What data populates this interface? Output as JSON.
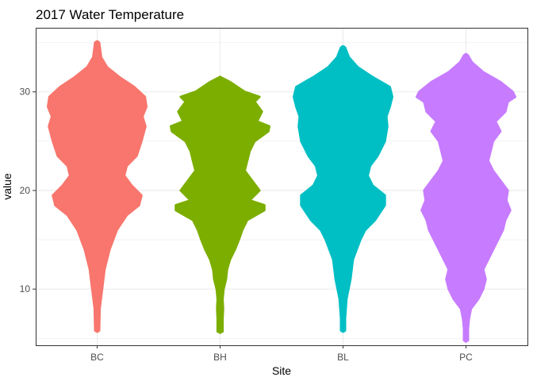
{
  "chart_data": {
    "type": "violin",
    "title": "2017 Water Temperature",
    "xlabel": "Site",
    "ylabel": "value",
    "categories": [
      "BC",
      "BH",
      "BL",
      "PC"
    ],
    "ylim": [
      4.3,
      36.5
    ],
    "yticks": [
      10,
      20,
      30
    ],
    "grid": true,
    "series": [
      {
        "name": "BC",
        "color": "#F8766D",
        "min": 5.8,
        "max": 35.0,
        "profile": [
          [
            5.8,
            0.02
          ],
          [
            8,
            0.05
          ],
          [
            10,
            0.1
          ],
          [
            12,
            0.15
          ],
          [
            14,
            0.25
          ],
          [
            16,
            0.4
          ],
          [
            17.5,
            0.6
          ],
          [
            18.5,
            0.85
          ],
          [
            19.5,
            0.9
          ],
          [
            20.5,
            0.7
          ],
          [
            21.5,
            0.55
          ],
          [
            22.5,
            0.6
          ],
          [
            23.5,
            0.8
          ],
          [
            25,
            0.9
          ],
          [
            26.5,
            0.98
          ],
          [
            27.5,
            0.92
          ],
          [
            28.5,
            1.0
          ],
          [
            29.5,
            0.97
          ],
          [
            30.5,
            0.75
          ],
          [
            31.5,
            0.45
          ],
          [
            32.5,
            0.2
          ],
          [
            33.5,
            0.08
          ],
          [
            35,
            0.02
          ]
        ]
      },
      {
        "name": "BH",
        "color": "#7CAE00",
        "min": 5.7,
        "max": 31.4,
        "profile": [
          [
            5.7,
            0.05
          ],
          [
            7,
            0.05
          ],
          [
            8,
            0.06
          ],
          [
            9,
            0.05
          ],
          [
            10,
            0.07
          ],
          [
            11,
            0.12
          ],
          [
            12,
            0.14
          ],
          [
            13,
            0.2
          ],
          [
            14,
            0.3
          ],
          [
            15,
            0.38
          ],
          [
            16,
            0.45
          ],
          [
            17,
            0.55
          ],
          [
            18,
            0.9
          ],
          [
            18.5,
            0.9
          ],
          [
            19,
            0.6
          ],
          [
            20,
            0.8
          ],
          [
            21,
            0.65
          ],
          [
            22,
            0.5
          ],
          [
            23,
            0.55
          ],
          [
            24,
            0.6
          ],
          [
            25,
            0.7
          ],
          [
            26,
            0.98
          ],
          [
            26.5,
            1.0
          ],
          [
            27,
            0.75
          ],
          [
            28,
            0.85
          ],
          [
            29,
            0.7
          ],
          [
            29.5,
            0.8
          ],
          [
            30,
            0.5
          ],
          [
            31,
            0.2
          ],
          [
            31.4,
            0.05
          ]
        ]
      },
      {
        "name": "BL",
        "color": "#00BFC4",
        "min": 5.8,
        "max": 34.5,
        "profile": [
          [
            5.8,
            0.02
          ],
          [
            7,
            0.04
          ],
          [
            9,
            0.07
          ],
          [
            11,
            0.15
          ],
          [
            13,
            0.2
          ],
          [
            15,
            0.35
          ],
          [
            16,
            0.45
          ],
          [
            17,
            0.65
          ],
          [
            18.5,
            0.85
          ],
          [
            19.5,
            0.85
          ],
          [
            20.5,
            0.6
          ],
          [
            21.5,
            0.5
          ],
          [
            22.5,
            0.55
          ],
          [
            23.5,
            0.7
          ],
          [
            25,
            0.85
          ],
          [
            26.5,
            0.9
          ],
          [
            27.5,
            0.88
          ],
          [
            28.5,
            0.95
          ],
          [
            29.5,
            1.0
          ],
          [
            30.5,
            0.95
          ],
          [
            31.5,
            0.6
          ],
          [
            32.5,
            0.3
          ],
          [
            33.5,
            0.12
          ],
          [
            34.5,
            0.02
          ]
        ]
      },
      {
        "name": "PC",
        "color": "#C77CFF",
        "min": 4.8,
        "max": 33.7,
        "profile": [
          [
            4.8,
            0.02
          ],
          [
            6,
            0.04
          ],
          [
            7,
            0.06
          ],
          [
            8,
            0.1
          ],
          [
            9,
            0.25
          ],
          [
            10,
            0.35
          ],
          [
            11,
            0.4
          ],
          [
            12,
            0.35
          ],
          [
            13,
            0.45
          ],
          [
            14,
            0.55
          ],
          [
            15,
            0.65
          ],
          [
            16,
            0.75
          ],
          [
            17,
            0.8
          ],
          [
            18,
            0.9
          ],
          [
            19,
            0.82
          ],
          [
            20,
            0.85
          ],
          [
            21,
            0.7
          ],
          [
            22,
            0.55
          ],
          [
            23,
            0.45
          ],
          [
            24,
            0.5
          ],
          [
            25,
            0.55
          ],
          [
            26,
            0.7
          ],
          [
            27,
            0.6
          ],
          [
            28,
            0.8
          ],
          [
            29,
            0.85
          ],
          [
            29.5,
            1.0
          ],
          [
            30,
            0.95
          ],
          [
            31,
            0.7
          ],
          [
            32,
            0.35
          ],
          [
            33,
            0.12
          ],
          [
            33.7,
            0.02
          ]
        ]
      }
    ]
  }
}
